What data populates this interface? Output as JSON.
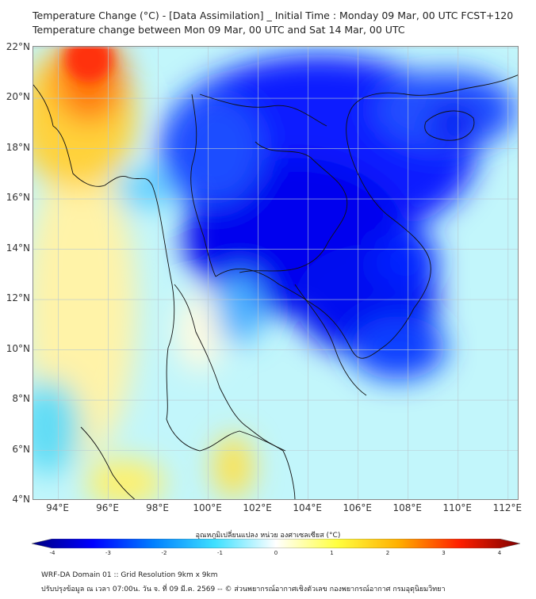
{
  "title": {
    "line1": "Temperature Change (°C) - [Data Assimilation] _ Initial Time : Monday 09 Mar, 00 UTC FCST+120",
    "line2": "Temperature change between Mon 09 Mar, 00 UTC and Sat 14 Mar, 00 UTC"
  },
  "map": {
    "lat_range": [
      4,
      22.05
    ],
    "lon_range": [
      93,
      112.45
    ],
    "lat_ticks": [
      "4°N",
      "6°N",
      "8°N",
      "10°N",
      "12°N",
      "14°N",
      "16°N",
      "18°N",
      "20°N",
      "22°N"
    ],
    "lat_values": [
      4,
      6,
      8,
      10,
      12,
      14,
      16,
      18,
      20,
      22
    ],
    "lon_ticks": [
      "94°E",
      "96°E",
      "98°E",
      "100°E",
      "102°E",
      "104°E",
      "106°E",
      "108°E",
      "110°E",
      "112°E"
    ],
    "lon_values": [
      94,
      96,
      98,
      100,
      102,
      104,
      106,
      108,
      110,
      112
    ]
  },
  "colorbar": {
    "title": "อุณหภูมิเปลี่ยนแปลง หน่วย องศาเซลเซียส (°C)",
    "ticks": [
      "-4",
      "-3",
      "-2",
      "-1",
      "0",
      "1",
      "2",
      "3",
      "4"
    ],
    "tick_values": [
      -4,
      -3,
      -2,
      -1,
      0,
      1,
      2,
      3,
      4
    ],
    "colors": [
      "#00007f",
      "#0000ff",
      "#0080ff",
      "#3ee0ff",
      "#ffffff",
      "#ffff40",
      "#ffb000",
      "#ff2000",
      "#7f0000"
    ]
  },
  "footer": {
    "line1": "WRF-DA Domain 01 :: Grid Resolution 9km x 9km",
    "line2": "ปรับปรุงข้อมูล ณ เวลา 07:00น. วัน จ. ที่ 09 มี.ค. 2569 -- © ส่วนพยากรณ์อากาศเชิงตัวเลข กองพยากรณ์อากาศ กรมอุตุนิยมวิทยา"
  }
}
